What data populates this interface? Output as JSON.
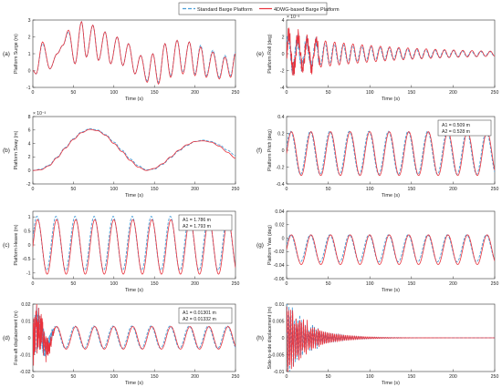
{
  "legend": {
    "position": "top-center",
    "entries": [
      {
        "label": "Standard Barge Platform",
        "color": "#4a9fd8",
        "style": "dashed"
      },
      {
        "label": "4DWG-based Barge Platform",
        "color": "#e8323c",
        "style": "solid"
      }
    ]
  },
  "chart_data": [
    {
      "id": "a",
      "type": "line",
      "panel_label": "(a)",
      "ylabel": "Platform Surge (m)",
      "xlabel": "Time (s)",
      "xlim": [
        0,
        250
      ],
      "ylim": [
        -1,
        3
      ],
      "xticks": [
        0,
        50,
        100,
        150,
        200,
        250
      ],
      "yticks": [
        -1,
        0,
        1,
        2,
        3
      ],
      "series": [
        {
          "name": "Standard Barge Platform",
          "x": [
            0,
            4,
            12,
            21,
            30,
            37,
            44,
            52,
            60,
            66,
            74,
            81,
            89,
            96,
            104,
            111,
            118,
            126,
            133,
            141,
            148,
            155,
            163,
            170,
            178,
            185,
            193,
            200,
            207,
            214,
            222,
            230,
            237,
            244,
            250
          ],
          "y": [
            0.0,
            -0.2,
            1.6,
            0.1,
            1.0,
            1.5,
            2.3,
            0.4,
            2.9,
            0.8,
            2.7,
            0.6,
            2.3,
            0.4,
            2.0,
            0.3,
            1.6,
            -0.2,
            0.9,
            -0.6,
            1.0,
            -0.7,
            1.6,
            -0.3,
            1.8,
            -0.1,
            1.7,
            -0.2,
            1.5,
            -0.3,
            1.2,
            -0.4,
            0.9,
            -0.3,
            1.1
          ]
        },
        {
          "name": "4DWG-based Barge Platform",
          "x": [
            0,
            4,
            12,
            21,
            30,
            37,
            44,
            52,
            60,
            66,
            74,
            81,
            89,
            96,
            104,
            111,
            118,
            126,
            133,
            141,
            148,
            155,
            163,
            170,
            178,
            185,
            193,
            200,
            207,
            214,
            222,
            230,
            237,
            244,
            250
          ],
          "y": [
            0.0,
            -0.2,
            1.7,
            0.1,
            1.0,
            1.5,
            2.4,
            0.4,
            2.9,
            0.8,
            2.7,
            0.6,
            2.3,
            0.4,
            2.0,
            0.3,
            1.6,
            -0.2,
            0.9,
            -0.7,
            1.0,
            -0.8,
            1.6,
            -0.4,
            1.8,
            -0.2,
            1.7,
            -0.3,
            1.4,
            -0.4,
            1.1,
            -0.5,
            0.8,
            -0.4,
            1.0
          ]
        }
      ]
    },
    {
      "id": "b",
      "type": "line",
      "panel_label": "(b)",
      "ylabel": "Platform Sway (m)",
      "xlabel": "Time (s)",
      "exponent": "× 10⁻³",
      "xlim": [
        0,
        250
      ],
      "ylim": [
        -2,
        8
      ],
      "xticks": [
        0,
        50,
        100,
        150,
        200,
        250
      ],
      "yticks": [
        -2,
        0,
        2,
        4,
        6,
        8
      ],
      "series": [
        {
          "name": "Standard Barge Platform",
          "x": [
            0,
            10,
            20,
            30,
            40,
            50,
            60,
            70,
            80,
            90,
            100,
            110,
            120,
            130,
            140,
            150,
            160,
            170,
            180,
            190,
            200,
            210,
            220,
            230,
            240,
            250
          ],
          "y": [
            0,
            0.2,
            0.8,
            2.0,
            3.4,
            4.7,
            5.7,
            6.2,
            6.0,
            5.3,
            4.2,
            3.0,
            1.7,
            0.7,
            0.1,
            0.2,
            0.9,
            1.9,
            2.9,
            3.7,
            4.3,
            4.5,
            4.3,
            3.8,
            3.0,
            2.2
          ]
        },
        {
          "name": "4DWG-based Barge Platform",
          "x": [
            0,
            10,
            20,
            30,
            40,
            50,
            60,
            70,
            80,
            90,
            100,
            110,
            120,
            130,
            140,
            150,
            160,
            170,
            180,
            190,
            200,
            210,
            220,
            230,
            240,
            250
          ],
          "y": [
            0,
            0.1,
            0.7,
            1.9,
            3.3,
            4.6,
            5.6,
            6.1,
            5.9,
            5.2,
            4.0,
            2.8,
            1.5,
            0.5,
            0.0,
            0.3,
            1.0,
            2.0,
            3.0,
            3.8,
            4.3,
            4.4,
            4.2,
            3.6,
            2.7,
            1.8
          ]
        }
      ]
    },
    {
      "id": "c",
      "type": "line",
      "panel_label": "(c)",
      "ylabel": "Platform Heave (m)",
      "xlabel": "Time (s)",
      "xlim": [
        0,
        250
      ],
      "ylim": [
        -1.2,
        1.2
      ],
      "xticks": [
        0,
        50,
        100,
        150,
        200,
        250
      ],
      "yticks": [
        -1,
        -0.5,
        0,
        0.5,
        1
      ],
      "annotation": {
        "lines": [
          "A1 = 1.786 m",
          "A2 = 1.793 m"
        ]
      },
      "series": [
        {
          "name": "Standard Barge Platform",
          "period": 23.5,
          "amplitude": 0.96,
          "offset": 0.06,
          "phase": 0.2
        },
        {
          "name": "4DWG-based Barge Platform",
          "period": 23.5,
          "amplitude": 0.97,
          "offset": -0.07,
          "phase": 0.0
        }
      ]
    },
    {
      "id": "d",
      "type": "line",
      "panel_label": "(d)",
      "ylabel": "Fore-aft displacement (m)",
      "xlabel": "Time (s)",
      "xlim": [
        0,
        250
      ],
      "ylim": [
        -0.02,
        0.02
      ],
      "xticks": [
        0,
        50,
        100,
        150,
        200,
        250
      ],
      "yticks": [
        -0.02,
        -0.01,
        0,
        0.01,
        0.02
      ],
      "annotation": {
        "lines": [
          "A1 = 0.01301 m",
          "A2 = 0.01332 m"
        ]
      },
      "series": [
        {
          "name": "Standard Barge Platform",
          "period": 23.5,
          "amplitude": 0.0066,
          "offset": 0.0004,
          "phase": 0.3,
          "initial_noise": 0.018
        },
        {
          "name": "4DWG-based Barge Platform",
          "period": 23.5,
          "amplitude": 0.0067,
          "offset": 0.0,
          "phase": 0.0,
          "initial_noise": 0.02
        }
      ]
    },
    {
      "id": "e",
      "type": "line",
      "panel_label": "(e)",
      "ylabel": "Platform Roll (deg)",
      "xlabel": "Time (s)",
      "exponent": "× 10⁻³",
      "xlim": [
        0,
        250
      ],
      "ylim": [
        -4,
        4
      ],
      "xticks": [
        0,
        50,
        100,
        150,
        200,
        250
      ],
      "yticks": [
        -4,
        -2,
        0,
        2,
        4
      ],
      "series": [
        {
          "name": "Standard Barge Platform",
          "period": 11,
          "amplitude": 1.8,
          "decay": 0.008,
          "phase": 0.4
        },
        {
          "name": "4DWG-based Barge Platform",
          "period": 11,
          "amplitude": 2.2,
          "decay": 0.008,
          "phase": 0.0
        }
      ]
    },
    {
      "id": "f",
      "type": "line",
      "panel_label": "(f)",
      "ylabel": "Platform Pitch (deg)",
      "xlabel": "Time (s)",
      "xlim": [
        0,
        250
      ],
      "ylim": [
        -0.4,
        0.4
      ],
      "xticks": [
        0,
        50,
        100,
        150,
        200,
        250
      ],
      "yticks": [
        -0.4,
        -0.2,
        0,
        0.2,
        0.4
      ],
      "annotation": {
        "lines": [
          "A1 = 0.509 m",
          "A2 = 0.528 m"
        ]
      },
      "series": [
        {
          "name": "Standard Barge Platform",
          "period": 23.5,
          "amplitude": 0.255,
          "offset": -0.03,
          "phase": 0.25
        },
        {
          "name": "4DWG-based Barge Platform",
          "period": 23.5,
          "amplitude": 0.26,
          "offset": -0.04,
          "phase": 0.0
        }
      ]
    },
    {
      "id": "g",
      "type": "line",
      "panel_label": "(g)",
      "ylabel": "Platform Yaw (deg)",
      "xlabel": "Time (s)",
      "xlim": [
        0,
        250
      ],
      "ylim": [
        -0.06,
        0.04
      ],
      "xticks": [
        0,
        50,
        100,
        150,
        200,
        250
      ],
      "yticks": [
        -0.06,
        -0.04,
        -0.02,
        0,
        0.02,
        0.04
      ],
      "series": [
        {
          "name": "Standard Barge Platform",
          "period": 23.5,
          "amplitude": 0.02,
          "offset": -0.015,
          "phase": 0.25
        },
        {
          "name": "4DWG-based Barge Platform",
          "period": 23.5,
          "amplitude": 0.022,
          "offset": -0.017,
          "phase": 0.0
        }
      ]
    },
    {
      "id": "h",
      "type": "line",
      "panel_label": "(h)",
      "ylabel": "Side-to-side displacement (m)",
      "xlabel": "Time (s)",
      "xlim": [
        0,
        250
      ],
      "ylim": [
        -0.01,
        0.01
      ],
      "xticks": [
        0,
        50,
        100,
        150,
        200,
        250
      ],
      "yticks": [
        -0.01,
        -0.005,
        0,
        0.005,
        0.01
      ],
      "series": [
        {
          "name": "Standard Barge Platform",
          "period": 2.2,
          "amplitude": 0.008,
          "decay": 0.035,
          "phase": 0.5
        },
        {
          "name": "4DWG-based Barge Platform",
          "period": 2.2,
          "amplitude": 0.009,
          "decay": 0.035,
          "phase": 0.0
        }
      ]
    }
  ]
}
